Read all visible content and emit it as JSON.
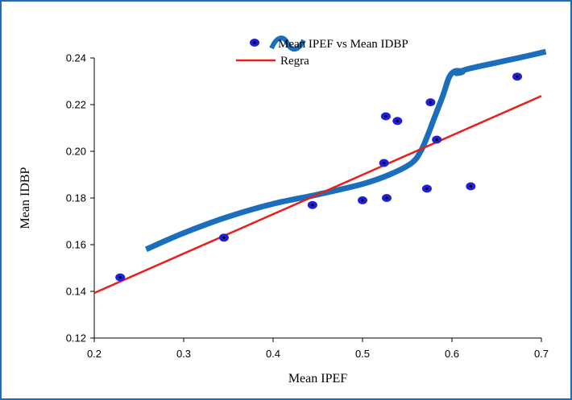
{
  "chart_data": {
    "type": "scatter",
    "xlabel": "Mean IPEF",
    "ylabel": "Mean IDBP",
    "xlim": [
      0.2,
      0.7
    ],
    "ylim": [
      0.12,
      0.24
    ],
    "x_ticks": [
      0.2,
      0.3,
      0.4,
      0.5,
      0.6,
      0.7
    ],
    "x_tick_labels": [
      "0.2",
      "0.3",
      "0.4",
      "0.5",
      "0.6",
      "0.7"
    ],
    "y_ticks": [
      0.12,
      0.14,
      0.16,
      0.18,
      0.2,
      0.22,
      0.24
    ],
    "y_tick_labels": [
      "0.12",
      "0.14",
      "0.16",
      "0.18",
      "0.20",
      "0.22",
      "0.24"
    ],
    "grid": false,
    "legend_position": "top",
    "series": [
      {
        "name": "Mean IPEF vs Mean IDBP",
        "kind": "scatter",
        "color": "#1f1fd6",
        "x": [
          0.229,
          0.345,
          0.444,
          0.5,
          0.524,
          0.526,
          0.527,
          0.539,
          0.572,
          0.576,
          0.583,
          0.621,
          0.673
        ],
        "y": [
          0.146,
          0.163,
          0.177,
          0.179,
          0.195,
          0.215,
          0.18,
          0.213,
          0.184,
          0.221,
          0.205,
          0.185,
          0.232
        ]
      },
      {
        "name": "Regra",
        "kind": "line",
        "color": "#e8201c",
        "x": [
          0.2,
          0.7
        ],
        "y": [
          0.1393,
          0.2237
        ]
      },
      {
        "name": "",
        "kind": "curve",
        "color": "#1a6ebc",
        "x": [
          0.258,
          0.3,
          0.35,
          0.4,
          0.45,
          0.5,
          0.53,
          0.555,
          0.565,
          0.572,
          0.58,
          0.59,
          0.596,
          0.6,
          0.605,
          0.612,
          0.605,
          0.62,
          0.65,
          0.68,
          0.705
        ],
        "y": [
          0.158,
          0.165,
          0.172,
          0.1775,
          0.1815,
          0.186,
          0.19,
          0.195,
          0.2,
          0.206,
          0.214,
          0.224,
          0.231,
          0.2335,
          0.2345,
          0.234,
          0.2335,
          0.2355,
          0.238,
          0.2405,
          0.2427
        ]
      }
    ]
  }
}
